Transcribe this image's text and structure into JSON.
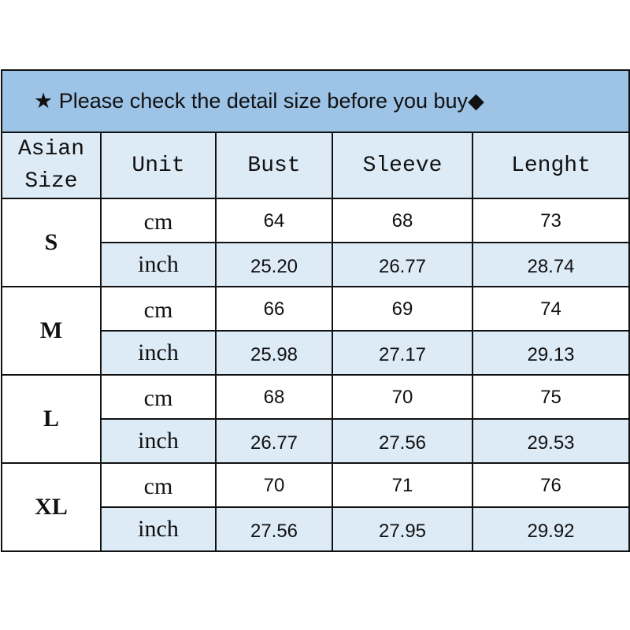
{
  "title": {
    "icon_left": "★",
    "text": "Please check the detail size before you buy",
    "icon_right": "◆"
  },
  "headers": {
    "asian": "Asian",
    "size": "Size",
    "unit": "Unit",
    "bust": "Bust",
    "sleeve": "Sleeve",
    "length": "Lenght"
  },
  "rows": [
    {
      "size": "S",
      "cm": {
        "unit": "cm",
        "bust": "64",
        "sleeve": "68",
        "length": "73"
      },
      "inch": {
        "unit": "inch",
        "bust": "25.20",
        "sleeve": "26.77",
        "length": "28.74"
      }
    },
    {
      "size": "M",
      "cm": {
        "unit": "cm",
        "bust": "66",
        "sleeve": "69",
        "length": "74"
      },
      "inch": {
        "unit": "inch",
        "bust": "25.98",
        "sleeve": "27.17",
        "length": "29.13"
      }
    },
    {
      "size": "L",
      "cm": {
        "unit": "cm",
        "bust": "68",
        "sleeve": "70",
        "length": "75"
      },
      "inch": {
        "unit": "inch",
        "bust": "26.77",
        "sleeve": "27.56",
        "length": "29.53"
      }
    },
    {
      "size": "XL",
      "cm": {
        "unit": "cm",
        "bust": "70",
        "sleeve": "71",
        "length": "76"
      },
      "inch": {
        "unit": "inch",
        "bust": "27.56",
        "sleeve": "27.95",
        "length": "29.92"
      }
    }
  ],
  "colors": {
    "title_bg": "#9dc3e6",
    "header_bg": "#ddebf7",
    "border": "#111111"
  }
}
